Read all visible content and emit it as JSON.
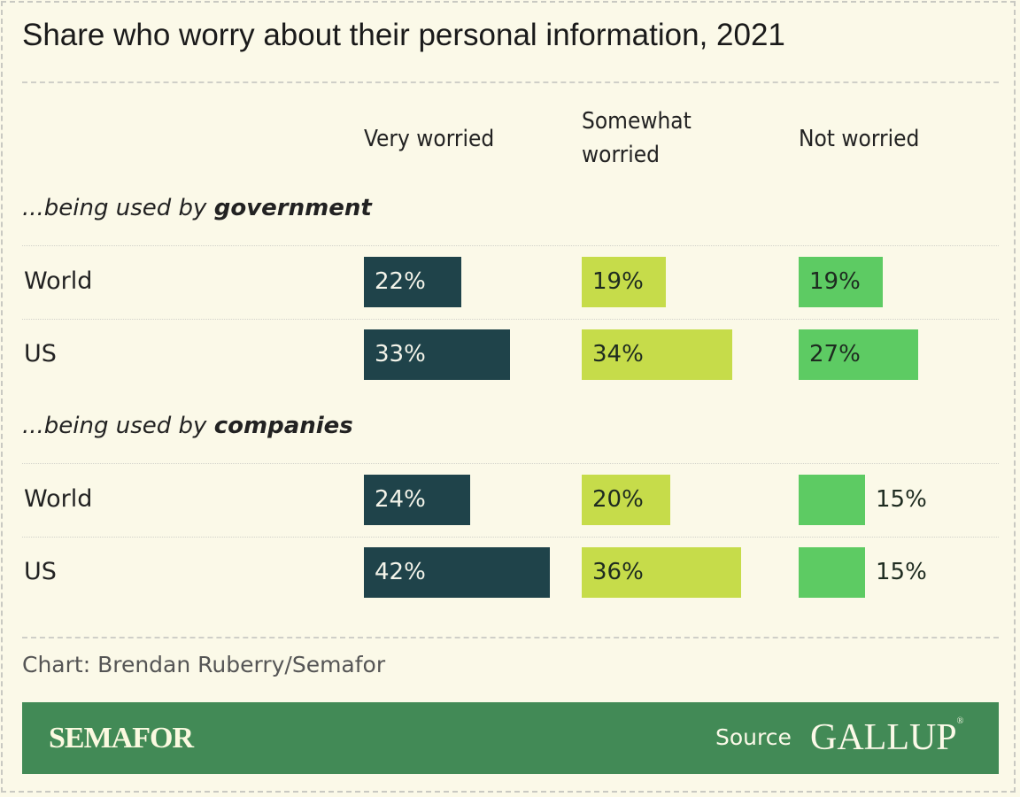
{
  "chart_data": {
    "type": "bar",
    "title": "Share who worry about their personal information, 2021",
    "columns": [
      "Very worried",
      "Somewhat worried",
      "Not worried"
    ],
    "column_colors": [
      "#1f434a",
      "#c6dc4a",
      "#5dcb63"
    ],
    "unit": "%",
    "groups": [
      {
        "prefix": "...being used by ",
        "emphasis": "government",
        "rows": [
          {
            "label": "World",
            "values": [
              22,
              19,
              19
            ]
          },
          {
            "label": "US",
            "values": [
              33,
              34,
              27
            ]
          }
        ]
      },
      {
        "prefix": "...being used by ",
        "emphasis": "companies",
        "rows": [
          {
            "label": "World",
            "values": [
              24,
              20,
              15
            ]
          },
          {
            "label": "US",
            "values": [
              42,
              36,
              15
            ]
          }
        ]
      }
    ]
  },
  "header": {
    "col1": "Very worried",
    "col2a": "Somewhat",
    "col2b": "worried",
    "col3": "Not worried"
  },
  "footer": {
    "credit": "Chart: Brendan Ruberry/Semafor",
    "brand": "SEMAFOR",
    "source_label": "Source",
    "source": "GALLUP"
  },
  "colors": {
    "background": "#fbf9e8",
    "band": "#428a56"
  }
}
